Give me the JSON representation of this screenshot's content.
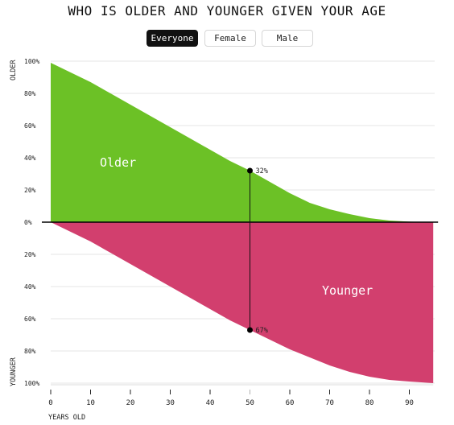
{
  "title": "WHO IS OLDER AND YOUNGER GIVEN YOUR AGE",
  "toggles": [
    {
      "label": "Everyone",
      "active": true
    },
    {
      "label": "Female",
      "active": false
    },
    {
      "label": "Male",
      "active": false
    }
  ],
  "colors": {
    "older": "#6cc126",
    "younger": "#d23f6e",
    "baseline": "#000000",
    "grid": "#e6e6e6",
    "highlight_tick": "#b0b0b0"
  },
  "chart_data": {
    "type": "area",
    "xlabel": "YEARS OLD",
    "ylabel_top": "OLDER",
    "ylabel_bottom": "YOUNGER",
    "xlim": [
      0,
      96
    ],
    "ylim": [
      -100,
      100
    ],
    "x_ticks": [
      "0",
      "10",
      "20",
      "30",
      "40",
      "50",
      "60",
      "70",
      "80",
      "90"
    ],
    "y_ticks_top": [
      "100%",
      "80%",
      "60%",
      "40%",
      "20%",
      "0%"
    ],
    "y_ticks_bottom": [
      "20%",
      "40%",
      "60%",
      "80%",
      "100%"
    ],
    "highlight_age": "50",
    "x": [
      0,
      5,
      10,
      15,
      20,
      25,
      30,
      35,
      40,
      45,
      50,
      55,
      60,
      65,
      70,
      75,
      80,
      85,
      90,
      96
    ],
    "series": [
      {
        "name": "Older",
        "values": [
          99,
          93,
          87,
          80,
          73,
          66,
          59,
          52,
          45,
          38,
          32,
          25,
          18,
          12,
          8,
          5,
          2.5,
          1,
          0.3,
          0
        ]
      },
      {
        "name": "Younger",
        "values": [
          0,
          6,
          12,
          19,
          26,
          33,
          40,
          47,
          54,
          61,
          67,
          73,
          79,
          84,
          89,
          93,
          96,
          98,
          99,
          100
        ]
      }
    ],
    "markers": [
      {
        "series": "Older",
        "x": 50,
        "label": "32%"
      },
      {
        "series": "Younger",
        "x": 50,
        "label": "67%"
      }
    ]
  }
}
